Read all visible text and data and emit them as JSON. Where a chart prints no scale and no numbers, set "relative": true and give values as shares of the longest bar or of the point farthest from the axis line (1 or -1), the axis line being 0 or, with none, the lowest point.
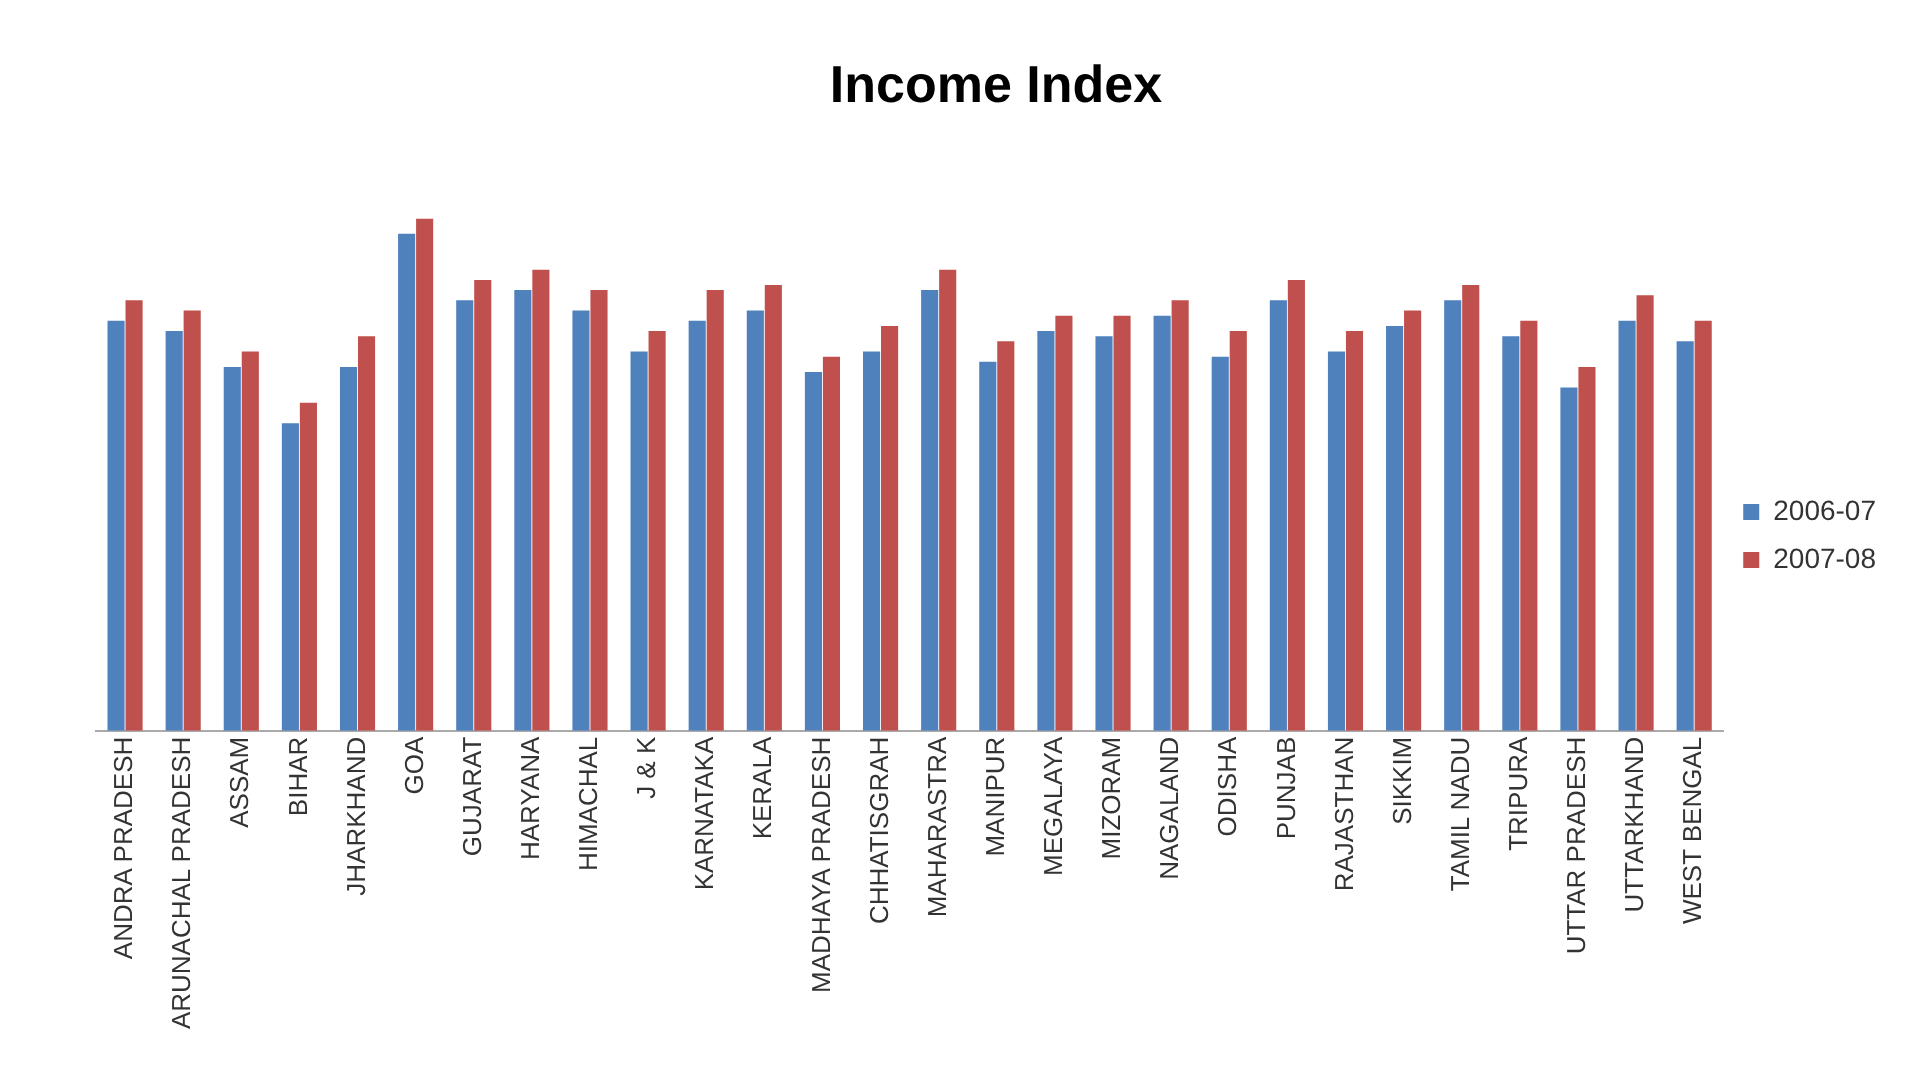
{
  "chart_data": {
    "type": "bar",
    "title": "Income Index",
    "relative": true,
    "legend": "right",
    "categories": [
      "ANDRA PRADESH",
      "ARUNACHAL PRADESH",
      "ASSAM",
      "BIHAR",
      "JHARKHAND",
      "GOA",
      "GUJARAT",
      "HARYANA",
      "HIMACHAL",
      "J & K",
      "KARNATAKA",
      "KERALA",
      "MADHAYA PRADESH",
      "CHHATISGRAH",
      "MAHARASTRA",
      "MANIPUR",
      "MEGALAYA",
      "MIZORAM",
      "NAGALAND",
      "ODISHA",
      "PUNJAB",
      "RAJASTHAN",
      "SIKKIM",
      "TAMIL NADU",
      "TRIPURA",
      "UTTAR PRADESH",
      "UTTARKHAND",
      "WEST BENGAL"
    ],
    "series": [
      {
        "name": "2006-07",
        "color": "#4f81bd",
        "values": [
          0.8,
          0.78,
          0.71,
          0.6,
          0.71,
          0.97,
          0.84,
          0.86,
          0.82,
          0.74,
          0.8,
          0.82,
          0.7,
          0.74,
          0.86,
          0.72,
          0.78,
          0.77,
          0.81,
          0.73,
          0.84,
          0.74,
          0.79,
          0.84,
          0.77,
          0.67,
          0.8,
          0.76
        ]
      },
      {
        "name": "2007-08",
        "color": "#c0504d",
        "values": [
          0.84,
          0.82,
          0.74,
          0.64,
          0.77,
          1,
          0.88,
          0.9,
          0.86,
          0.78,
          0.86,
          0.87,
          0.73,
          0.79,
          0.9,
          0.76,
          0.81,
          0.81,
          0.84,
          0.78,
          0.88,
          0.78,
          0.82,
          0.87,
          0.8,
          0.71,
          0.85,
          0.8
        ]
      }
    ]
  }
}
